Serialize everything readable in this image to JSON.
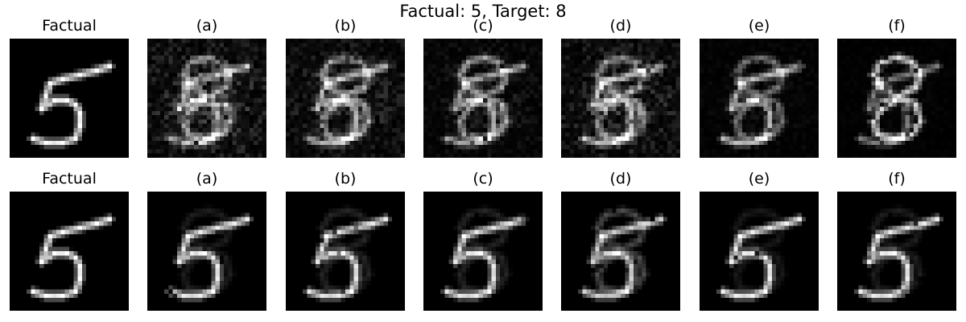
{
  "figure": {
    "title": "Factual: 5, Target: 8",
    "rows": [
      {
        "panels": [
          {
            "title": "Factual",
            "digit": "5",
            "noise": 0.0,
            "blend": 0.0
          },
          {
            "title": "(a)",
            "digit": "5",
            "noise": 0.45,
            "blend": 0.55
          },
          {
            "title": "(b)",
            "digit": "5",
            "noise": 0.35,
            "blend": 0.55
          },
          {
            "title": "(c)",
            "digit": "5",
            "noise": 0.2,
            "blend": 0.6
          },
          {
            "title": "(d)",
            "digit": "5",
            "noise": 0.4,
            "blend": 0.5
          },
          {
            "title": "(e)",
            "digit": "5",
            "noise": 0.1,
            "blend": 0.45
          },
          {
            "title": "(f)",
            "digit": "5",
            "noise": 0.05,
            "blend": 0.85
          }
        ]
      },
      {
        "panels": [
          {
            "title": "Factual",
            "digit": "5",
            "noise": 0.0,
            "blend": 0.0
          },
          {
            "title": "(a)",
            "digit": "5",
            "noise": 0.0,
            "blend": 0.12
          },
          {
            "title": "(b)",
            "digit": "5",
            "noise": 0.0,
            "blend": 0.15
          },
          {
            "title": "(c)",
            "digit": "5",
            "noise": 0.0,
            "blend": 0.15
          },
          {
            "title": "(d)",
            "digit": "5",
            "noise": 0.0,
            "blend": 0.3
          },
          {
            "title": "(e)",
            "digit": "5",
            "noise": 0.0,
            "blend": 0.1
          },
          {
            "title": "(f)",
            "digit": "5",
            "noise": 0.0,
            "blend": 0.12
          }
        ]
      }
    ]
  }
}
